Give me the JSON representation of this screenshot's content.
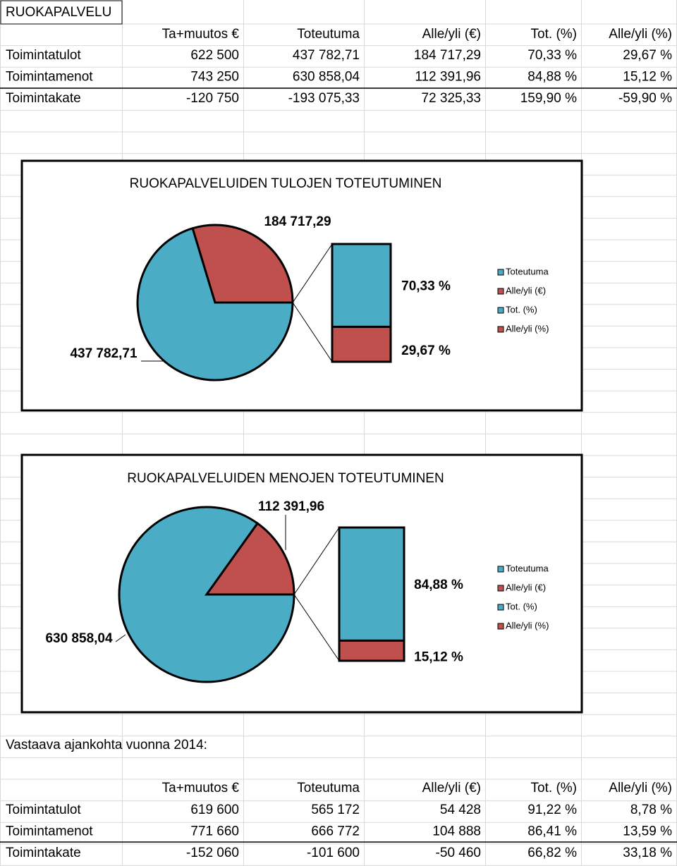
{
  "title": "RUOKAPALVELU",
  "top": {
    "headers": [
      "Ta+muutos €",
      "Toteutuma",
      "Alle/yli (€)",
      "Tot. (%)",
      "Alle/yli (%)"
    ],
    "rows": [
      [
        "Toimintatulot",
        "622 500",
        "437 782,71",
        "184 717,29",
        "70,33 %",
        "29,67 %"
      ],
      [
        "Toimintamenot",
        "743 250",
        "630 858,04",
        "112 391,96",
        "84,88 %",
        "15,12 %"
      ],
      [
        "Toimintakate",
        "-120 750",
        "-193 075,33",
        "72 325,33",
        "159,90 %",
        "-59,90 %"
      ]
    ]
  },
  "chart_data": [
    {
      "type": "pie-of-pie",
      "title": "RUOKAPALVELUIDEN TULOJEN TOTEUTUMINEN",
      "pie": {
        "labels": [
          "Toteutuma",
          "Alle/yli (€)"
        ],
        "values": [
          437782.71,
          184717.29
        ],
        "value_labels": [
          "437 782,71",
          "184 717,29"
        ],
        "colors": [
          "#4bacc6",
          "#c0504d"
        ]
      },
      "bar": {
        "labels": [
          "Tot. (%)",
          "Alle/yli (%)"
        ],
        "values": [
          70.33,
          29.67
        ],
        "value_labels": [
          "70,33 %",
          "29,67 %"
        ],
        "colors": [
          "#4bacc6",
          "#c0504d"
        ]
      }
    },
    {
      "type": "pie-of-pie",
      "title": "RUOKAPALVELUIDEN MENOJEN TOTEUTUMINEN",
      "pie": {
        "labels": [
          "Toteutuma",
          "Alle/yli (€)"
        ],
        "values": [
          630858.04,
          112391.96
        ],
        "value_labels": [
          "630 858,04",
          "112 391,96"
        ],
        "colors": [
          "#4bacc6",
          "#c0504d"
        ]
      },
      "bar": {
        "labels": [
          "Tot. (%)",
          "Alle/yli (%)"
        ],
        "values": [
          84.88,
          15.12
        ],
        "value_labels": [
          "84,88 %",
          "15,12 %"
        ],
        "colors": [
          "#4bacc6",
          "#c0504d"
        ]
      }
    }
  ],
  "comparison": {
    "heading": "Vastaava ajankohta vuonna 2014:",
    "headers": [
      "Ta+muutos €",
      "Toteutuma",
      "Alle/yli (€)",
      "Tot. (%)",
      "Alle/yli (%)"
    ],
    "rows": [
      [
        "Toimintatulot",
        "619 600",
        "565 172",
        "54 428",
        "91,22 %",
        "8,78 %"
      ],
      [
        "Toimintamenot",
        "771 660",
        "666 772",
        "104 888",
        "86,41 %",
        "13,59 %"
      ],
      [
        "Toimintakate",
        "-152 060",
        "-101 600",
        "-50 460",
        "66,82 %",
        "33,18 %"
      ]
    ]
  }
}
